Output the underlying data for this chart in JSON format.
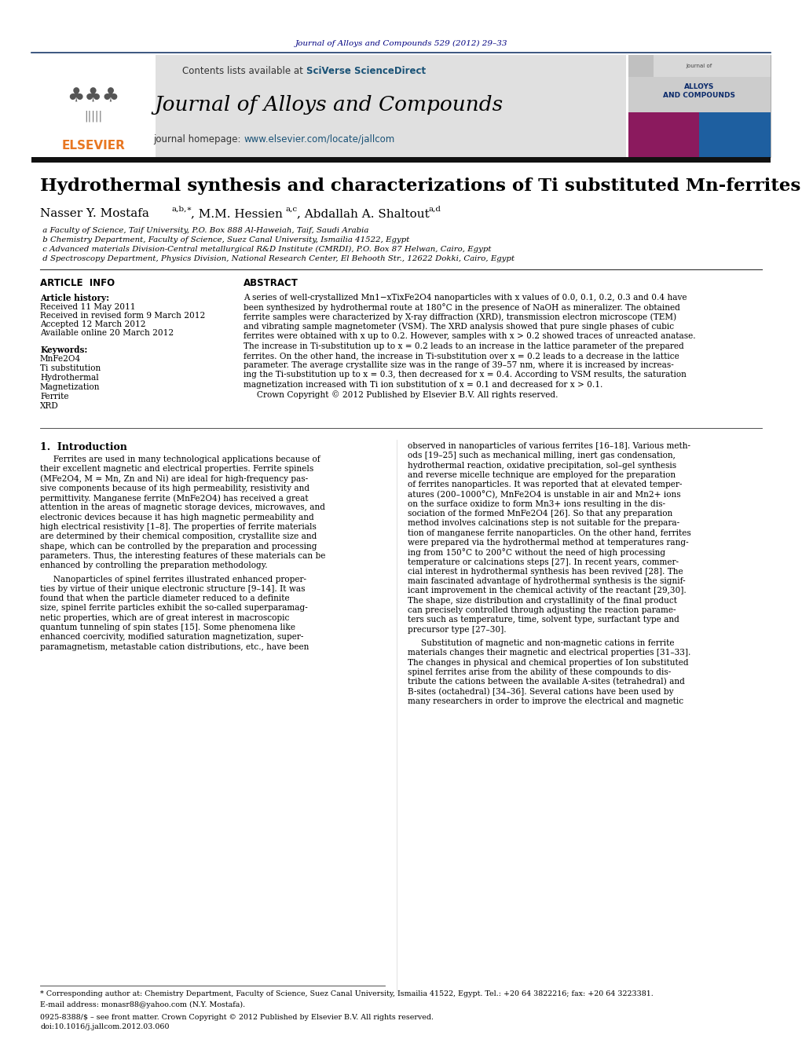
{
  "page_header_text": "Journal of Alloys and Compounds 529 (2012) 29–33",
  "header_bg_color": "#e8e8e8",
  "journal_title": "Journal of Alloys and Compounds",
  "journal_homepage": "journal homepage: www.elsevier.com/locate/jallcom",
  "contents_text": "Contents lists available at SciVerse ScienceDirect",
  "sciverse_color": "#1a5276",
  "paper_title": "Hydrothermal synthesis and characterizations of Ti substituted Mn-ferrites",
  "authors": "Nasser Y. Mostafa a,b,∗, M.M. Hessien a,c, Abdallah A. Shaltout a,d",
  "affil_a": " a Faculty of Science, Taif University, P.O. Box 888 Al-Haweiah, Taif, Saudi Arabia",
  "affil_b": " b Chemistry Department, Faculty of Science, Suez Canal University, Ismailia 41522, Egypt",
  "affil_c": " c Advanced materials Division-Central metallurgical R&D Institute (CMRDI), P.O. Box 87 Helwan, Cairo, Egypt",
  "affil_d": " d Spectroscopy Department, Physics Division, National Research Center, El Behooth Str., 12622 Dokki, Cairo, Egypt",
  "article_info_header": "ARTICLE  INFO",
  "abstract_header": "ABSTRACT",
  "article_history_label": "Article history:",
  "received_label": "Received 11 May 2011",
  "revised_label": "Received in revised form 9 March 2012",
  "accepted_label": "Accepted 12 March 2012",
  "available_label": "Available online 20 March 2012",
  "keywords_label": "Keywords:",
  "keyword1": "MnFe2O4",
  "keyword2": "Ti substitution",
  "keyword3": "Hydrothermal",
  "keyword4": "Magnetization",
  "keyword5": "Ferrite",
  "keyword6": "XRD",
  "abstract_lines": [
    "A series of well-crystallized Mn1−xTixFe2O4 nanoparticles with x values of 0.0, 0.1, 0.2, 0.3 and 0.4 have",
    "been synthesized by hydrothermal route at 180°C in the presence of NaOH as mineralizer. The obtained",
    "ferrite samples were characterized by X-ray diffraction (XRD), transmission electron microscope (TEM)",
    "and vibrating sample magnetometer (VSM). The XRD analysis showed that pure single phases of cubic",
    "ferrites were obtained with x up to 0.2. However, samples with x > 0.2 showed traces of unreacted anatase.",
    "The increase in Ti-substitution up to x = 0.2 leads to an increase in the lattice parameter of the prepared",
    "ferrites. On the other hand, the increase in Ti-substitution over x = 0.2 leads to a decrease in the lattice",
    "parameter. The average crystallite size was in the range of 39–57 nm, where it is increased by increas-",
    "ing the Ti-substitution up to x = 0.3, then decreased for x = 0.4. According to VSM results, the saturation",
    "magnetization increased with Ti ion substitution of x = 0.1 and decreased for x > 0.1.",
    "     Crown Copyright © 2012 Published by Elsevier B.V. All rights reserved."
  ],
  "intro_header": "1.  Introduction",
  "intro_left1": [
    "     Ferrites are used in many technological applications because of",
    "their excellent magnetic and electrical properties. Ferrite spinels",
    "(MFe2O4, M = Mn, Zn and Ni) are ideal for high-frequency pas-",
    "sive components because of its high permeability, resistivity and",
    "permittivity. Manganese ferrite (MnFe2O4) has received a great",
    "attention in the areas of magnetic storage devices, microwaves, and",
    "electronic devices because it has high magnetic permeability and",
    "high electrical resistivity [1–8]. The properties of ferrite materials",
    "are determined by their chemical composition, crystallite size and",
    "shape, which can be controlled by the preparation and processing",
    "parameters. Thus, the interesting features of these materials can be",
    "enhanced by controlling the preparation methodology."
  ],
  "intro_left2": [
    "     Nanoparticles of spinel ferrites illustrated enhanced proper-",
    "ties by virtue of their unique electronic structure [9–14]. It was",
    "found that when the particle diameter reduced to a definite",
    "size, spinel ferrite particles exhibit the so-called superparamag-",
    "netic properties, which are of great interest in macroscopic",
    "quantum tunneling of spin states [15]. Some phenomena like",
    "enhanced coercivity, modified saturation magnetization, super-",
    "paramagnetism, metastable cation distributions, etc., have been"
  ],
  "intro_right1": [
    "observed in nanoparticles of various ferrites [16–18]. Various meth-",
    "ods [19–25] such as mechanical milling, inert gas condensation,",
    "hydrothermal reaction, oxidative precipitation, sol–gel synthesis",
    "and reverse micelle technique are employed for the preparation",
    "of ferrites nanoparticles. It was reported that at elevated temper-",
    "atures (200–1000°C), MnFe2O4 is unstable in air and Mn2+ ions",
    "on the surface oxidize to form Mn3+ ions resulting in the dis-",
    "sociation of the formed MnFe2O4 [26]. So that any preparation",
    "method involves calcinations step is not suitable for the prepara-",
    "tion of manganese ferrite nanoparticles. On the other hand, ferrites",
    "were prepared via the hydrothermal method at temperatures rang-",
    "ing from 150°C to 200°C without the need of high processing",
    "temperature or calcinations steps [27]. In recent years, commer-",
    "cial interest in hydrothermal synthesis has been revived [28]. The",
    "main fascinated advantage of hydrothermal synthesis is the signif-",
    "icant improvement in the chemical activity of the reactant [29,30].",
    "The shape, size distribution and crystallinity of the final product",
    "can precisely controlled through adjusting the reaction parame-",
    "ters such as temperature, time, solvent type, surfactant type and",
    "precursor type [27–30]."
  ],
  "intro_right2": [
    "     Substitution of magnetic and non-magnetic cations in ferrite",
    "materials changes their magnetic and electrical properties [31–33].",
    "The changes in physical and chemical properties of Ion substituted",
    "spinel ferrites arise from the ability of these compounds to dis-",
    "tribute the cations between the available A-sites (tetrahedral) and",
    "B-sites (octahedral) [34–36]. Several cations have been used by",
    "many researchers in order to improve the electrical and magnetic"
  ],
  "footer_line1": "* Corresponding author at: Chemistry Department, Faculty of Science, Suez Canal University, Ismailia 41522, Egypt. Tel.: +20 64 3822216; fax: +20 64 3223381.",
  "footer_email": "E-mail address: monasr88@yahoo.com (N.Y. Mostafa).",
  "footer_issn": "0925-8388/$ – see front matter. Crown Copyright © 2012 Published by Elsevier B.V. All rights reserved.",
  "footer_doi": "doi:10.1016/j.jallcom.2012.03.060",
  "elsevier_color": "#e87722",
  "link_color": "#1a5276",
  "dark_navy": "#000080",
  "bg_white": "#ffffff",
  "text_black": "#000000",
  "header_bg": "#e0e0e0"
}
